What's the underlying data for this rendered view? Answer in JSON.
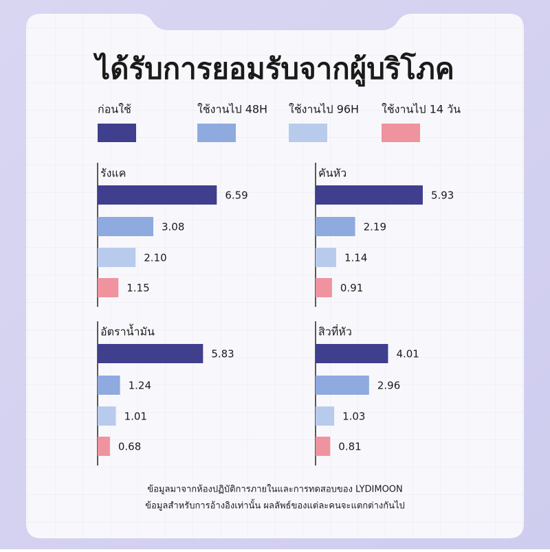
{
  "title": "ได้รับการยอมรับจากผู้บริโภค",
  "legend": [
    {
      "name": "ก่อนใช้",
      "color": "#3f3f8e"
    },
    {
      "name": "ใช้งานไป 48H",
      "color": "#8eaadf"
    },
    {
      "name": "ใช้งานไป 96H",
      "color": "#b8cbed"
    },
    {
      "name": "ใช้งานไป 14 วัน",
      "color": "#ef939f"
    }
  ],
  "chart_data": [
    {
      "type": "bar",
      "title": "รังแค",
      "values": [
        6.59,
        3.08,
        2.1,
        1.15
      ],
      "value_labels": [
        "6.59",
        "3.08",
        "2.10",
        "1.15"
      ]
    },
    {
      "type": "bar",
      "title": "คันหัว",
      "values": [
        5.93,
        2.19,
        1.14,
        0.91
      ],
      "value_labels": [
        "5.93",
        "2.19",
        "1.14",
        "0.91"
      ]
    },
    {
      "type": "bar",
      "title": "อัตราน้ำมัน",
      "values": [
        5.83,
        1.24,
        1.01,
        0.68
      ],
      "value_labels": [
        "5.83",
        "1.24",
        "1.01",
        "0.68"
      ]
    },
    {
      "type": "bar",
      "title": "สิวที่หัว",
      "values": [
        4.01,
        2.96,
        1.03,
        0.81
      ],
      "value_labels": [
        "4.01",
        "2.96",
        "1.03",
        "0.81"
      ]
    }
  ],
  "footnote": [
    "ข้อมูลมาจากห้องปฏิบัติการภายในและการทดสอบของ LYDIMOON",
    "ข้อมูลสำหรับการอ้างอิงเท่านั้น ผลลัพธ์ของแต่ละคนจะแตกต่างกันไป"
  ]
}
